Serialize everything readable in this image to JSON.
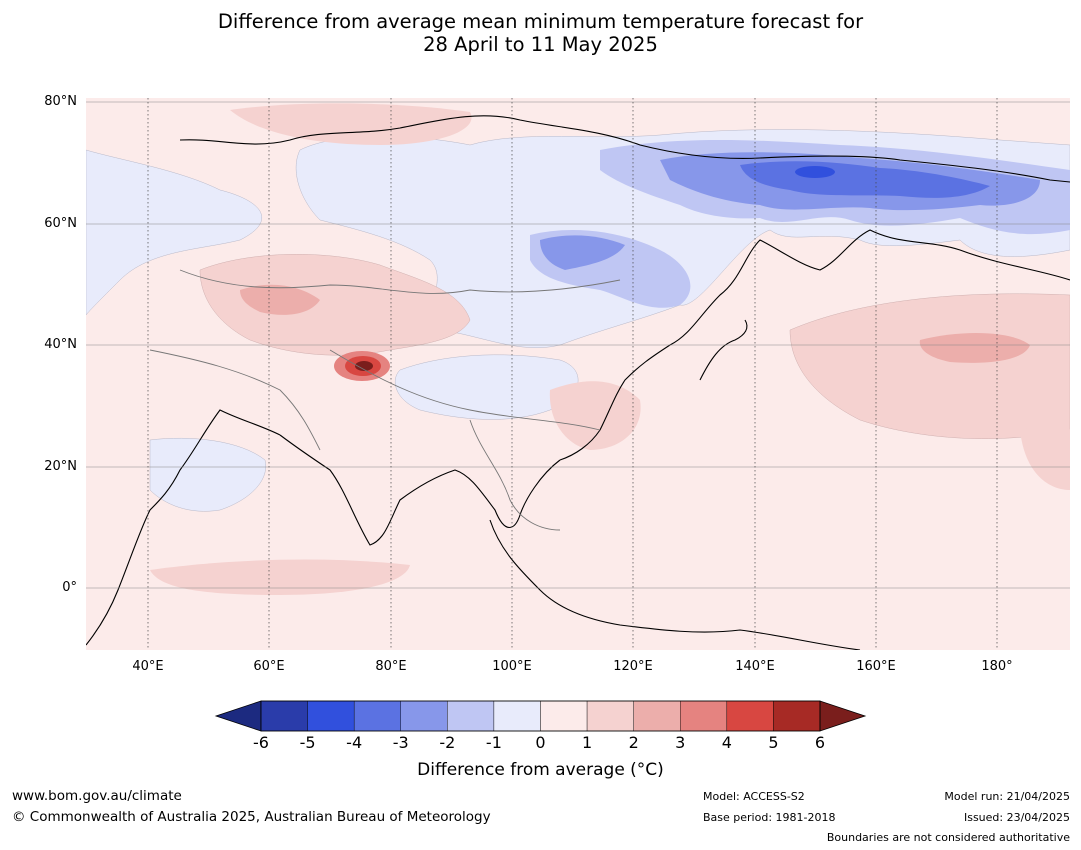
{
  "title_line1": "Difference from average mean minimum temperature forecast for",
  "title_line2": "28 April to 11 May 2025",
  "map": {
    "lat_labels": [
      "80°N",
      "60°N",
      "40°N",
      "20°N",
      "0°"
    ],
    "lon_labels": [
      "40°E",
      "60°E",
      "80°E",
      "100°E",
      "120°E",
      "140°E",
      "160°E",
      "180°"
    ],
    "background_color": "#fcebea",
    "gridlines": "dotted"
  },
  "legend": {
    "ticks": [
      "-6",
      "-5",
      "-4",
      "-3",
      "-2",
      "-1",
      "0",
      "1",
      "2",
      "3",
      "4",
      "5",
      "6"
    ],
    "colors": [
      "#1c2a80",
      "#2a3caa",
      "#3150dd",
      "#5b72e2",
      "#8797ea",
      "#bfc6f3",
      "#e8ebfb",
      "#fcebea",
      "#f5d2d0",
      "#ecaeab",
      "#e58380",
      "#d84741",
      "#a72a25",
      "#7a1e1c"
    ],
    "label": "Difference from average (°C)",
    "extend": "both"
  },
  "footer": {
    "url": "www.bom.gov.au/climate",
    "copyright": "© Commonwealth of Australia 2025, Australian Bureau of Meteorology",
    "model": "Model: ACCESS-S2",
    "base_period": "Base period: 1981-2018",
    "model_run": "Model run: 21/04/2025",
    "issued": "Issued: 23/04/2025",
    "disclaimer": "Boundaries are not considered authoritative"
  }
}
